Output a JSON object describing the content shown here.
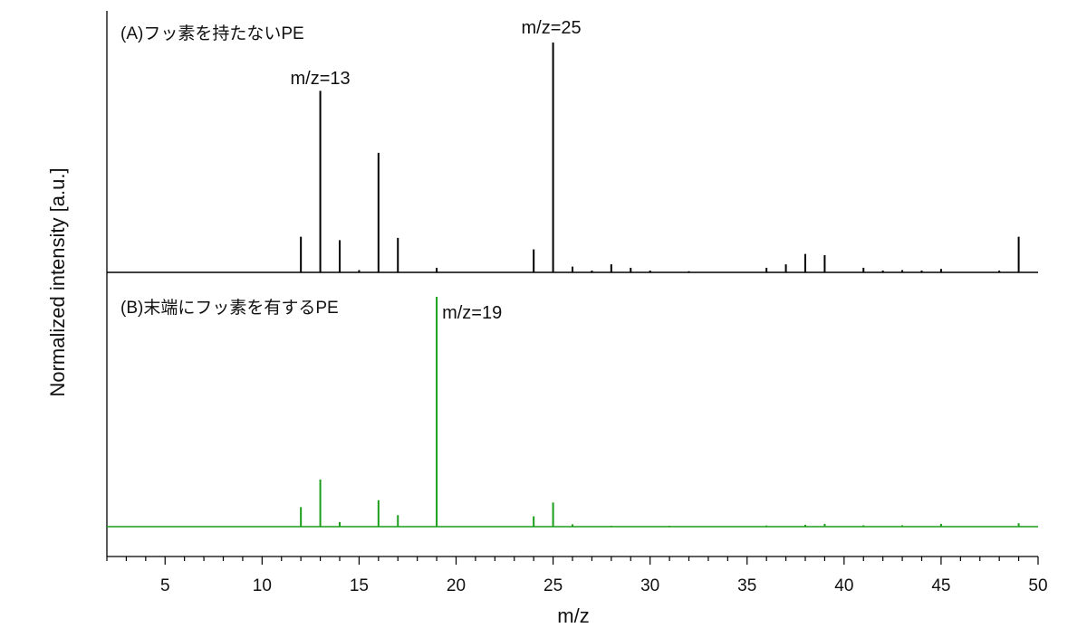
{
  "chart_data": {
    "type": "bar",
    "xlabel": "m/z",
    "ylabel": "Normalized intensity [a.u.]",
    "xlim": [
      2,
      50
    ],
    "x_ticks": [
      5,
      10,
      15,
      20,
      25,
      30,
      35,
      40,
      45,
      50
    ],
    "grid": false,
    "panels": [
      {
        "label": "(A)フッ素を持たないPE",
        "color": "#000000",
        "ylim": [
          0,
          1.0
        ],
        "x": [
          12,
          13,
          14,
          15,
          16,
          17,
          19,
          24,
          25,
          26,
          27,
          28,
          29,
          30,
          32,
          36,
          37,
          38,
          39,
          41,
          42,
          43,
          44,
          45,
          48,
          49
        ],
        "values": [
          0.155,
          0.79,
          0.14,
          0.01,
          0.52,
          0.15,
          0.02,
          0.1,
          1.0,
          0.025,
          0.008,
          0.035,
          0.02,
          0.008,
          0.005,
          0.02,
          0.035,
          0.08,
          0.075,
          0.02,
          0.008,
          0.01,
          0.008,
          0.015,
          0.008,
          0.155
        ],
        "annotations": [
          {
            "text": "m/z=13",
            "x": 13
          },
          {
            "text": "m/z=25",
            "x": 25
          }
        ]
      },
      {
        "label": "(B)末端にフッ素を有するPE",
        "color": "#1a9e1a",
        "ylim": [
          0,
          1.0
        ],
        "x": [
          12,
          13,
          14,
          16,
          17,
          19,
          24,
          25,
          26,
          28,
          31,
          36,
          38,
          39,
          41,
          43,
          45,
          49
        ],
        "values": [
          0.085,
          0.205,
          0.02,
          0.115,
          0.05,
          1.0,
          0.045,
          0.105,
          0.01,
          0.004,
          0.004,
          0.005,
          0.008,
          0.012,
          0.006,
          0.006,
          0.012,
          0.015
        ],
        "annotations": [
          {
            "text": "m/z=19",
            "x": 19
          }
        ]
      }
    ]
  }
}
